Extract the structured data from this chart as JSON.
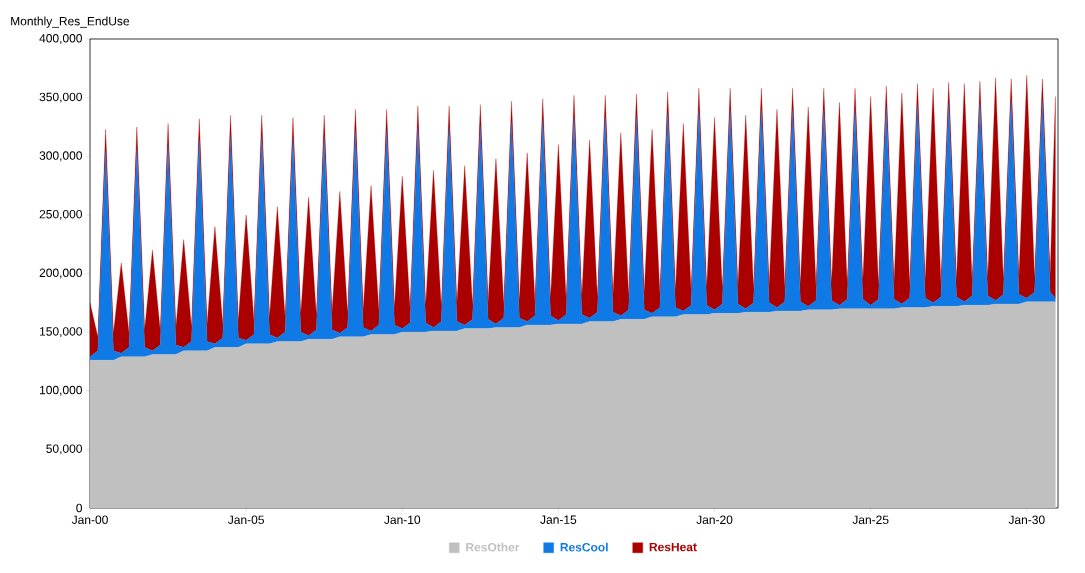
{
  "chart_data": {
    "type": "area",
    "stacked": true,
    "title": "Monthly_Res_EndUse",
    "x": [
      "2000-01",
      "2000-04",
      "2000-07",
      "2000-10",
      "2001-01",
      "2001-04",
      "2001-07",
      "2001-10",
      "2002-01",
      "2002-04",
      "2002-07",
      "2002-10",
      "2003-01",
      "2003-04",
      "2003-07",
      "2003-10",
      "2004-01",
      "2004-04",
      "2004-07",
      "2004-10",
      "2005-01",
      "2005-04",
      "2005-07",
      "2005-10",
      "2006-01",
      "2006-04",
      "2006-07",
      "2006-10",
      "2007-01",
      "2007-04",
      "2007-07",
      "2007-10",
      "2008-01",
      "2008-04",
      "2008-07",
      "2008-10",
      "2009-01",
      "2009-04",
      "2009-07",
      "2009-10",
      "2010-01",
      "2010-04",
      "2010-07",
      "2010-10",
      "2011-01",
      "2011-04",
      "2011-07",
      "2011-10",
      "2012-01",
      "2012-04",
      "2012-07",
      "2012-10",
      "2013-01",
      "2013-04",
      "2013-07",
      "2013-10",
      "2014-01",
      "2014-04",
      "2014-07",
      "2014-10",
      "2015-01",
      "2015-04",
      "2015-07",
      "2015-10",
      "2016-01",
      "2016-04",
      "2016-07",
      "2016-10",
      "2017-01",
      "2017-04",
      "2017-07",
      "2017-10",
      "2018-01",
      "2018-04",
      "2018-07",
      "2018-10",
      "2019-01",
      "2019-04",
      "2019-07",
      "2019-10",
      "2020-01",
      "2020-04",
      "2020-07",
      "2020-10",
      "2021-01",
      "2021-04",
      "2021-07",
      "2021-10",
      "2022-01",
      "2022-04",
      "2022-07",
      "2022-10",
      "2023-01",
      "2023-04",
      "2023-07",
      "2023-10",
      "2024-01",
      "2024-04",
      "2024-07",
      "2024-10",
      "2025-01",
      "2025-04",
      "2025-07",
      "2025-10",
      "2026-01",
      "2026-04",
      "2026-07",
      "2026-10",
      "2027-01",
      "2027-04",
      "2027-07",
      "2027-10",
      "2028-01",
      "2028-04",
      "2028-07",
      "2028-10",
      "2029-01",
      "2029-04",
      "2029-07",
      "2029-10",
      "2030-01",
      "2030-04",
      "2030-07",
      "2030-10",
      "2030-12"
    ],
    "series": [
      {
        "name": "ResOther",
        "color": "#c0c0c0",
        "values": [
          126000,
          126000,
          126000,
          126000,
          129000,
          129000,
          129000,
          129000,
          131000,
          131000,
          131000,
          131000,
          134000,
          134000,
          134000,
          134000,
          137000,
          137000,
          137000,
          137000,
          140000,
          140000,
          140000,
          140000,
          142000,
          142000,
          142000,
          142000,
          144000,
          144000,
          144000,
          144000,
          146000,
          146000,
          146000,
          146000,
          148000,
          148000,
          148000,
          148000,
          150000,
          150000,
          150000,
          150000,
          151000,
          151000,
          151000,
          151000,
          153000,
          153000,
          153000,
          153000,
          154000,
          154000,
          154000,
          154000,
          156000,
          156000,
          156000,
          156000,
          157000,
          157000,
          157000,
          157000,
          159000,
          159000,
          159000,
          159000,
          161000,
          161000,
          161000,
          161000,
          163000,
          163000,
          163000,
          163000,
          165000,
          165000,
          165000,
          165000,
          166000,
          166000,
          166000,
          166000,
          167000,
          167000,
          167000,
          167000,
          168000,
          168000,
          168000,
          168000,
          169000,
          169000,
          169000,
          169000,
          170000,
          170000,
          170000,
          170000,
          170000,
          170000,
          170000,
          170000,
          171000,
          171000,
          171000,
          171000,
          172000,
          172000,
          172000,
          172000,
          173000,
          173000,
          173000,
          173000,
          174000,
          174000,
          174000,
          174000,
          176000,
          176000,
          176000,
          176000,
          176000
        ]
      },
      {
        "name": "ResCool",
        "color": "#0f7ae5",
        "values": [
          3000,
          8000,
          179000,
          8000,
          3000,
          8000,
          178000,
          8000,
          3000,
          8000,
          179000,
          8000,
          3000,
          8000,
          180000,
          8000,
          3000,
          8000,
          180000,
          8000,
          3000,
          8000,
          177000,
          8000,
          3000,
          8000,
          173000,
          8000,
          3000,
          8000,
          173000,
          8000,
          3000,
          8000,
          176000,
          8000,
          3000,
          8000,
          174000,
          8000,
          3000,
          8000,
          175000,
          8000,
          3000,
          8000,
          174000,
          8000,
          3000,
          8000,
          173000,
          8000,
          3000,
          8000,
          175000,
          8000,
          3000,
          8000,
          175000,
          8000,
          3000,
          8000,
          177000,
          8000,
          3000,
          8000,
          175000,
          8000,
          3000,
          8000,
          174000,
          8000,
          3000,
          8000,
          174000,
          8000,
          3000,
          8000,
          175000,
          8000,
          3000,
          8000,
          174000,
          8000,
          3000,
          8000,
          173000,
          8000,
          3000,
          8000,
          172000,
          8000,
          3000,
          8000,
          171000,
          8000,
          3000,
          8000,
          170000,
          8000,
          3000,
          8000,
          172000,
          8000,
          3000,
          8000,
          173000,
          8000,
          3000,
          8000,
          173000,
          8000,
          3000,
          8000,
          173000,
          8000,
          3000,
          8000,
          174000,
          8000,
          3000,
          8000,
          172000,
          8000,
          3000
        ]
      },
      {
        "name": "ResHeat",
        "color": "#aa0000",
        "values": [
          46000,
          12000,
          18000,
          15000,
          77000,
          12000,
          18000,
          15000,
          86000,
          12000,
          18000,
          15000,
          92000,
          12000,
          18000,
          15000,
          100000,
          12000,
          18000,
          15000,
          107000,
          12000,
          18000,
          15000,
          112000,
          12000,
          18000,
          15000,
          118000,
          12000,
          18000,
          15000,
          121000,
          12000,
          18000,
          15000,
          124000,
          12000,
          18000,
          15000,
          130000,
          12000,
          18000,
          15000,
          134000,
          12000,
          18000,
          15000,
          136000,
          12000,
          18000,
          15000,
          141000,
          12000,
          18000,
          15000,
          144000,
          12000,
          18000,
          15000,
          150000,
          12000,
          18000,
          15000,
          152000,
          12000,
          18000,
          15000,
          156000,
          12000,
          18000,
          15000,
          157000,
          12000,
          18000,
          15000,
          160000,
          12000,
          18000,
          15000,
          164000,
          12000,
          18000,
          15000,
          165000,
          12000,
          18000,
          15000,
          169000,
          12000,
          18000,
          15000,
          170000,
          12000,
          18000,
          15000,
          173000,
          12000,
          18000,
          15000,
          178000,
          12000,
          18000,
          15000,
          180000,
          12000,
          18000,
          15000,
          183000,
          12000,
          18000,
          15000,
          186000,
          12000,
          18000,
          15000,
          190000,
          12000,
          18000,
          15000,
          190000,
          12000,
          18000,
          15000,
          172000
        ]
      }
    ],
    "xlim": [
      "2000-01",
      "2031-01"
    ],
    "xticks": [
      {
        "value": "2000-01",
        "label": "Jan-00"
      },
      {
        "value": "2005-01",
        "label": "Jan-05"
      },
      {
        "value": "2010-01",
        "label": "Jan-10"
      },
      {
        "value": "2015-01",
        "label": "Jan-15"
      },
      {
        "value": "2020-01",
        "label": "Jan-20"
      },
      {
        "value": "2025-01",
        "label": "Jan-25"
      },
      {
        "value": "2030-01",
        "label": "Jan-30"
      }
    ],
    "ylim": [
      0,
      400000
    ],
    "yticks": [
      0,
      {
        "value": 50000,
        "label": "50,000"
      },
      {
        "value": 100000,
        "label": "100,000"
      },
      {
        "value": 150000,
        "label": "150,000"
      },
      {
        "value": 200000,
        "label": "200,000"
      },
      {
        "value": 250000,
        "label": "250,000"
      },
      {
        "value": 300000,
        "label": "300,000"
      },
      {
        "value": 350000,
        "label": "350,000"
      },
      {
        "value": 400000,
        "label": "400,000"
      }
    ],
    "legend": "bottom",
    "grid": false
  }
}
